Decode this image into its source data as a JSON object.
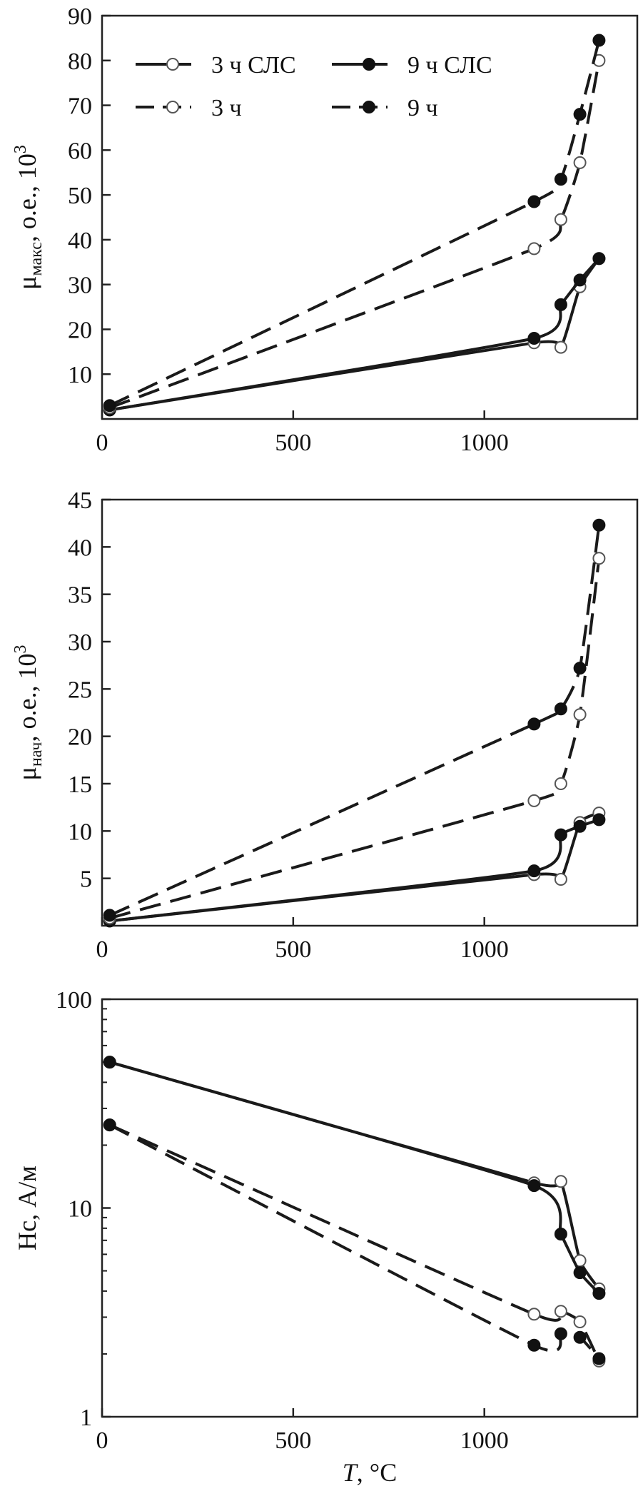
{
  "chart_data": [
    {
      "type": "line",
      "ylabel": "μ",
      "ylabel_sub": "макс",
      "ylabel_rest": ", о.е., 10",
      "ylabel_sup": "3",
      "xlim": [
        0,
        1400
      ],
      "ylim": [
        0,
        90
      ],
      "xticks": [
        0,
        500,
        1000
      ],
      "yticks": [
        10,
        20,
        30,
        40,
        50,
        60,
        70,
        80,
        90
      ],
      "ytick_labels": [
        "10",
        "20",
        "30",
        "40",
        "50",
        "60",
        "70",
        "80",
        "90"
      ],
      "legend": "top-left",
      "series": [
        {
          "name": "3 ч СЛС",
          "style": "solid",
          "marker": "open",
          "points": [
            [
              20,
              2
            ],
            [
              1130,
              17
            ],
            [
              1200,
              16
            ],
            [
              1250,
              29.5
            ],
            [
              1300,
              35.8
            ]
          ]
        },
        {
          "name": "9 ч СЛС",
          "style": "solid",
          "marker": "filled",
          "points": [
            [
              20,
              2
            ],
            [
              1130,
              18
            ],
            [
              1200,
              25.5
            ],
            [
              1250,
              31
            ],
            [
              1300,
              35.8
            ]
          ]
        },
        {
          "name": "3 ч",
          "style": "dashed",
          "marker": "open",
          "points": [
            [
              20,
              2.5
            ],
            [
              1130,
              38
            ],
            [
              1200,
              44.5
            ],
            [
              1250,
              57.2
            ],
            [
              1300,
              80
            ]
          ]
        },
        {
          "name": "9 ч",
          "style": "dashed",
          "marker": "filled",
          "points": [
            [
              20,
              3
            ],
            [
              1130,
              48.5
            ],
            [
              1200,
              53.5
            ],
            [
              1250,
              68
            ],
            [
              1300,
              84.5
            ]
          ]
        }
      ]
    },
    {
      "type": "line",
      "ylabel": "μ",
      "ylabel_sub": "нач",
      "ylabel_rest": ", о.е., 10",
      "ylabel_sup": "3",
      "xlim": [
        0,
        1400
      ],
      "ylim": [
        0,
        45
      ],
      "xticks": [
        0,
        500,
        1000
      ],
      "yticks": [
        5,
        10,
        15,
        20,
        25,
        30,
        35,
        40,
        45
      ],
      "ytick_labels": [
        "5",
        "10",
        "15",
        "20",
        "25",
        "30",
        "35",
        "40",
        "45"
      ],
      "series": [
        {
          "name": "3 ч СЛС",
          "style": "solid",
          "marker": "open",
          "points": [
            [
              20,
              0.5
            ],
            [
              1130,
              5.4
            ],
            [
              1200,
              4.9
            ],
            [
              1250,
              10.9
            ],
            [
              1300,
              11.9
            ]
          ]
        },
        {
          "name": "9 ч СЛС",
          "style": "solid",
          "marker": "filled",
          "points": [
            [
              20,
              0.5
            ],
            [
              1130,
              5.8
            ],
            [
              1200,
              9.6
            ],
            [
              1250,
              10.5
            ],
            [
              1300,
              11.2
            ]
          ]
        },
        {
          "name": "3 ч",
          "style": "dashed",
          "marker": "open",
          "points": [
            [
              20,
              0.8
            ],
            [
              1130,
              13.2
            ],
            [
              1200,
              15
            ],
            [
              1250,
              22.3
            ],
            [
              1300,
              38.8
            ]
          ]
        },
        {
          "name": "9 ч",
          "style": "dashed",
          "marker": "filled",
          "points": [
            [
              20,
              1.1
            ],
            [
              1130,
              21.3
            ],
            [
              1200,
              22.9
            ],
            [
              1250,
              27.2
            ],
            [
              1300,
              42.3
            ]
          ]
        }
      ]
    },
    {
      "type": "line",
      "ylabel": "Hc, А/м",
      "xlabel_italic": "T",
      "xlabel_rest": ", °C",
      "xlim": [
        0,
        1400
      ],
      "ylim": [
        1,
        100
      ],
      "yscale": "log",
      "xticks": [
        0,
        500,
        1000
      ],
      "yticks": [
        1,
        10,
        100
      ],
      "ytick_labels": [
        "1",
        "10",
        "100"
      ],
      "series": [
        {
          "name": "3 ч СЛС",
          "style": "solid",
          "marker": "open",
          "points": [
            [
              20,
              50
            ],
            [
              1130,
              13.2
            ],
            [
              1200,
              13.4
            ],
            [
              1250,
              5.6
            ],
            [
              1300,
              4.1
            ]
          ]
        },
        {
          "name": "9 ч СЛС",
          "style": "solid",
          "marker": "filled",
          "points": [
            [
              20,
              50
            ],
            [
              1130,
              12.8
            ],
            [
              1200,
              7.5
            ],
            [
              1250,
              4.9
            ],
            [
              1300,
              3.9
            ]
          ]
        },
        {
          "name": "3 ч",
          "style": "dashed",
          "marker": "open",
          "points": [
            [
              20,
              25
            ],
            [
              1130,
              3.1
            ],
            [
              1200,
              3.2
            ],
            [
              1250,
              2.85
            ],
            [
              1300,
              1.85
            ]
          ]
        },
        {
          "name": "9 ч",
          "style": "dashed",
          "marker": "filled",
          "points": [
            [
              20,
              25
            ],
            [
              1130,
              2.2
            ],
            [
              1200,
              2.5
            ],
            [
              1250,
              2.4
            ],
            [
              1300,
              1.9
            ]
          ]
        }
      ]
    }
  ]
}
